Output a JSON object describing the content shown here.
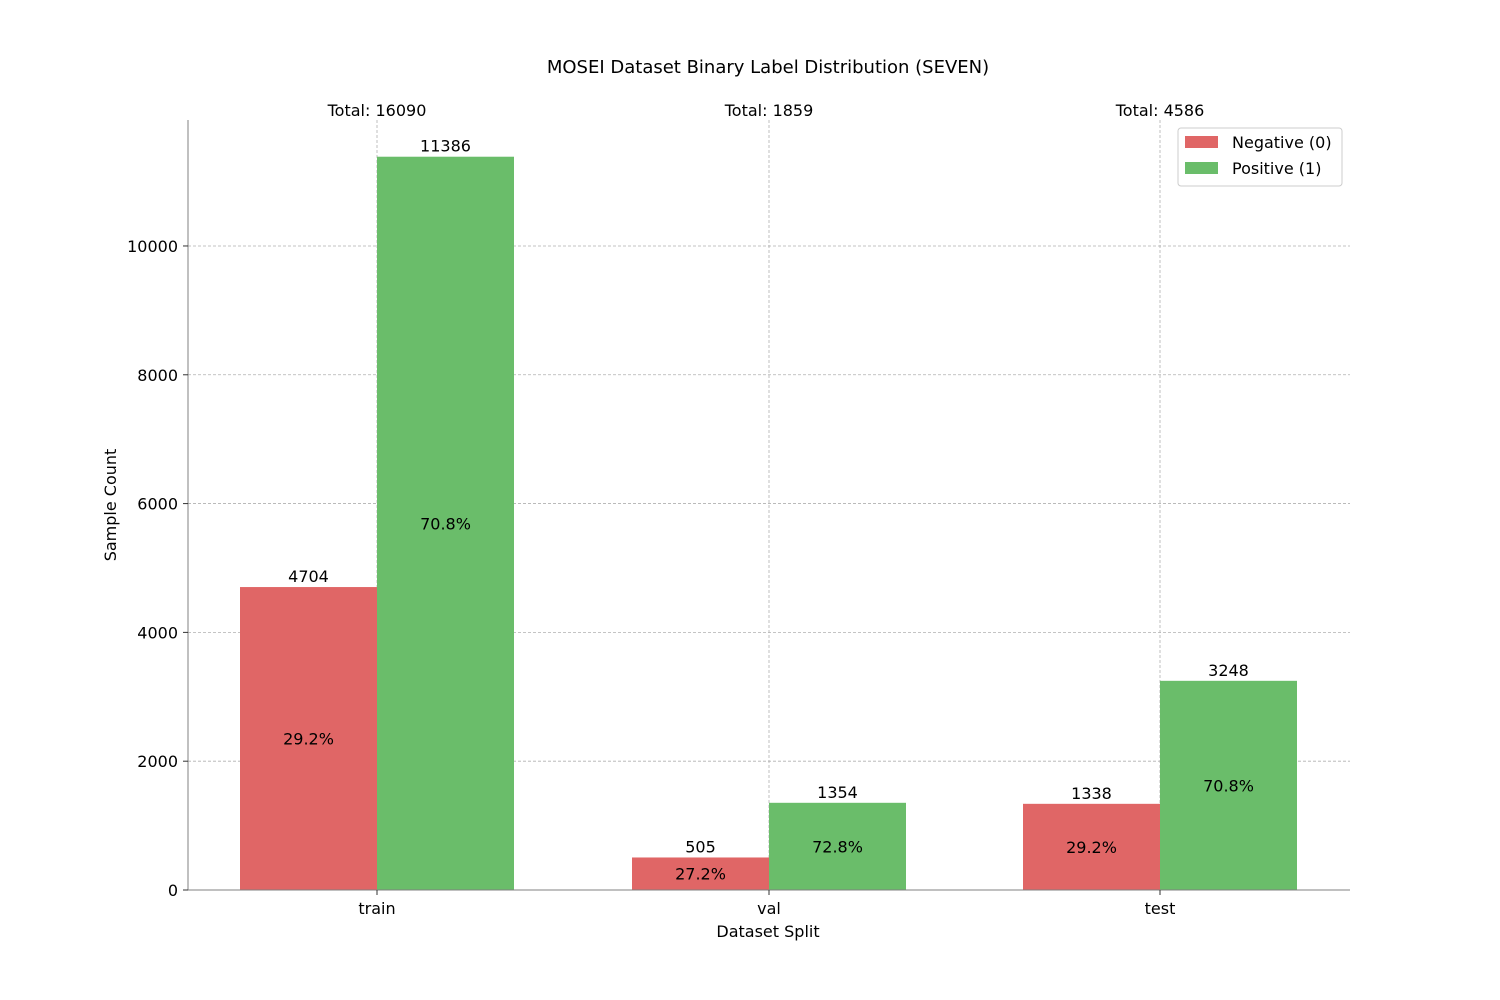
{
  "chart_data": {
    "type": "bar",
    "title": "MOSEI Dataset Binary Label Distribution (SEVEN)",
    "xlabel": "Dataset Split",
    "ylabel": "Sample Count",
    "categories": [
      "train",
      "val",
      "test"
    ],
    "ylim": [
      0,
      11956
    ],
    "yticks": [
      0,
      2000,
      4000,
      6000,
      8000,
      10000
    ],
    "grid": true,
    "legend_position": "top-right",
    "series": [
      {
        "name": "Negative (0)",
        "color": "#e06666",
        "values": [
          4704,
          505,
          1338
        ],
        "value_labels": [
          "4704",
          "505",
          "1338"
        ],
        "percent_labels": [
          "29.2%",
          "27.2%",
          "29.2%"
        ]
      },
      {
        "name": "Positive (1)",
        "color": "#6abd6a",
        "values": [
          11386,
          1354,
          3248
        ],
        "value_labels": [
          "11386",
          "1354",
          "3248"
        ],
        "percent_labels": [
          "70.8%",
          "72.8%",
          "70.8%"
        ]
      }
    ],
    "totals": [
      "Total: 16090",
      "Total: 1859",
      "Total: 4586"
    ]
  }
}
